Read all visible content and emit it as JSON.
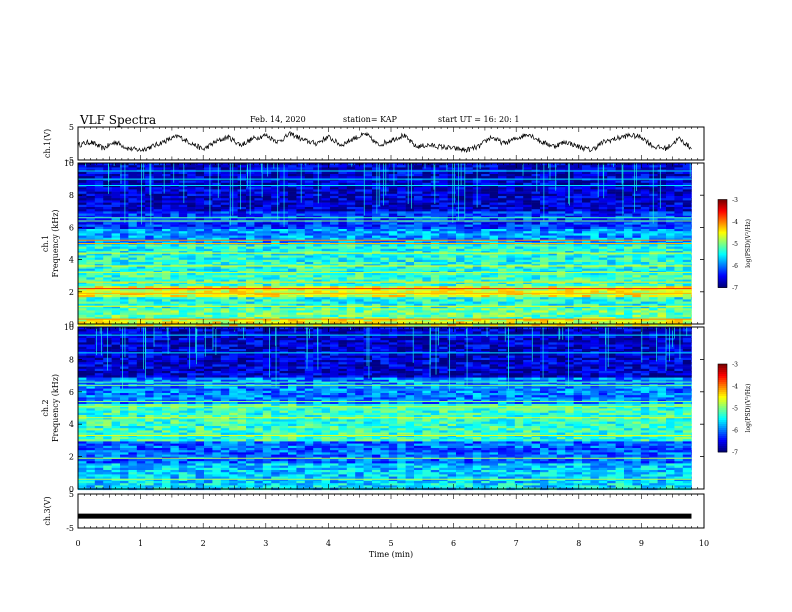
{
  "header": {
    "title": "VLF Spectra",
    "date": "Feb. 14, 2020",
    "station": "station= KAP",
    "start": "start UT =   16: 20: 1"
  },
  "chart_data": [
    {
      "type": "line",
      "panel": "ch1-waveform",
      "title": "",
      "xlabel": "",
      "ylabel": "ch.1(V)",
      "xlim": [
        0,
        10
      ],
      "ylim": [
        -5,
        5
      ],
      "y_ticks": [
        "5",
        "-5"
      ],
      "x": [
        0,
        0.2,
        0.4,
        0.6,
        0.8,
        1.0,
        1.2,
        1.4,
        1.6,
        1.8,
        2.0,
        2.2,
        2.4,
        2.6,
        2.8,
        3.0,
        3.2,
        3.4,
        3.6,
        3.8,
        4.0,
        4.2,
        4.4,
        4.6,
        4.8,
        5.0,
        5.2,
        5.4,
        5.6,
        5.8,
        6.0,
        6.2,
        6.4,
        6.6,
        6.8,
        7.0,
        7.2,
        7.4,
        7.6,
        7.8,
        8.0,
        8.2,
        8.4,
        8.6,
        8.8,
        9.0,
        9.2,
        9.4,
        9.6,
        9.8
      ],
      "values": [
        -0.5,
        0.5,
        -1.5,
        0.5,
        -1.5,
        -2.0,
        -0.8,
        0.8,
        2.2,
        0.2,
        -1.8,
        0.5,
        2.0,
        -0.5,
        1.5,
        2.5,
        0.5,
        3.0,
        1.0,
        0.0,
        2.0,
        -0.5,
        1.5,
        2.8,
        -0.5,
        1.0,
        2.5,
        -1.0,
        -0.5,
        -1.0,
        -1.5,
        -2.0,
        -1.0,
        2.0,
        0.0,
        1.5,
        3.0,
        0.5,
        -0.8,
        0.5,
        -1.0,
        -2.0,
        0.5,
        1.5,
        2.5,
        2.0,
        -1.0,
        -1.5,
        1.5,
        -1.5
      ],
      "color": "#000000"
    },
    {
      "type": "heatmap",
      "panel": "ch1-spectrogram",
      "title": "",
      "xlabel": "",
      "ylabel": "ch.1 Frequency (kHz)",
      "ylabel_line1": "ch.1",
      "ylabel_line2": "Frequency (kHz)",
      "xlim": [
        0,
        10
      ],
      "ylim": [
        0,
        10
      ],
      "y_ticks": [
        "0",
        "2",
        "4",
        "6",
        "8",
        "10"
      ],
      "colorbar": {
        "label": "log(PSD)(V²/Hz)",
        "range": [
          -7,
          -3
        ],
        "ticks": [
          "-3",
          "-4",
          "-5",
          "-6",
          "-7"
        ]
      },
      "bands": [
        {
          "f_lo": 0.0,
          "f_hi": 0.3,
          "level": -4.6
        },
        {
          "f_lo": 0.3,
          "f_hi": 1.0,
          "level": -5.1
        },
        {
          "f_lo": 1.0,
          "f_hi": 1.7,
          "level": -5.4
        },
        {
          "f_lo": 1.7,
          "f_hi": 2.4,
          "level": -4.6
        },
        {
          "f_lo": 2.4,
          "f_hi": 3.3,
          "level": -5.3
        },
        {
          "f_lo": 3.3,
          "f_hi": 5.0,
          "level": -5.4
        },
        {
          "f_lo": 5.0,
          "f_hi": 6.0,
          "level": -5.9
        },
        {
          "f_lo": 6.0,
          "f_hi": 7.0,
          "level": -6.3
        },
        {
          "f_lo": 7.0,
          "f_hi": 10.0,
          "level": -6.7
        }
      ],
      "lines": [
        {
          "f": 0.3,
          "level": -4.0
        },
        {
          "f": 1.1,
          "level": -4.5
        },
        {
          "f": 1.9,
          "level": -4.2
        },
        {
          "f": 2.2,
          "level": -3.6
        },
        {
          "f": 2.6,
          "level": -4.4
        },
        {
          "f": 3.2,
          "level": -4.8
        },
        {
          "f": 3.6,
          "level": -4.5
        },
        {
          "f": 4.4,
          "level": -4.6
        },
        {
          "f": 5.0,
          "level": -4.2
        },
        {
          "f": 5.2,
          "level": -4.0
        },
        {
          "f": 6.4,
          "level": -5.0
        },
        {
          "f": 6.6,
          "level": -5.2
        },
        {
          "f": 8.6,
          "level": -5.6
        },
        {
          "f": 9.0,
          "level": -5.6
        },
        {
          "f": 9.5,
          "level": -5.6
        }
      ]
    },
    {
      "type": "heatmap",
      "panel": "ch2-spectrogram",
      "title": "",
      "xlabel": "",
      "ylabel": "ch.2 Frequency (kHz)",
      "ylabel_line1": "ch.2",
      "ylabel_line2": "Frequency (kHz)",
      "xlim": [
        0,
        10
      ],
      "ylim": [
        0,
        10
      ],
      "y_ticks": [
        "0",
        "2",
        "4",
        "6",
        "8",
        "10"
      ],
      "colorbar": {
        "label": "log(PSD)(V²/Hz)",
        "range": [
          -7,
          -3
        ],
        "ticks": [
          "-3",
          "-4",
          "-5",
          "-6",
          "-7"
        ]
      },
      "bands": [
        {
          "f_lo": 0.0,
          "f_hi": 0.4,
          "level": -5.6
        },
        {
          "f_lo": 0.4,
          "f_hi": 1.7,
          "level": -5.7
        },
        {
          "f_lo": 1.7,
          "f_hi": 3.0,
          "level": -6.1
        },
        {
          "f_lo": 3.0,
          "f_hi": 5.3,
          "level": -5.3
        },
        {
          "f_lo": 5.3,
          "f_hi": 7.0,
          "level": -6.0
        },
        {
          "f_lo": 7.0,
          "f_hi": 10.0,
          "level": -6.7
        }
      ],
      "lines": [
        {
          "f": 0.6,
          "level": -4.8
        },
        {
          "f": 1.9,
          "level": -4.8
        },
        {
          "f": 3.3,
          "level": -4.6
        },
        {
          "f": 4.4,
          "level": -4.6
        },
        {
          "f": 5.1,
          "level": -4.8
        },
        {
          "f": 5.4,
          "level": -5.0
        },
        {
          "f": 6.4,
          "level": -5.0
        },
        {
          "f": 6.6,
          "level": -5.2
        },
        {
          "f": 8.4,
          "level": -5.6
        },
        {
          "f": 9.5,
          "level": -5.6
        }
      ]
    },
    {
      "type": "line",
      "panel": "ch3-waveform",
      "title": "",
      "ylabel": "ch.3(V)",
      "xlabel": "Time (min)",
      "xlim": [
        0,
        10
      ],
      "ylim": [
        -5,
        5
      ],
      "y_ticks": [
        "5",
        "-5"
      ],
      "x_ticks": [
        "0",
        "1",
        "2",
        "3",
        "4",
        "5",
        "6",
        "7",
        "8",
        "9",
        "10"
      ],
      "x": [
        0,
        9.8
      ],
      "values": [
        -1.5,
        -1.5
      ],
      "color": "#000000"
    }
  ]
}
